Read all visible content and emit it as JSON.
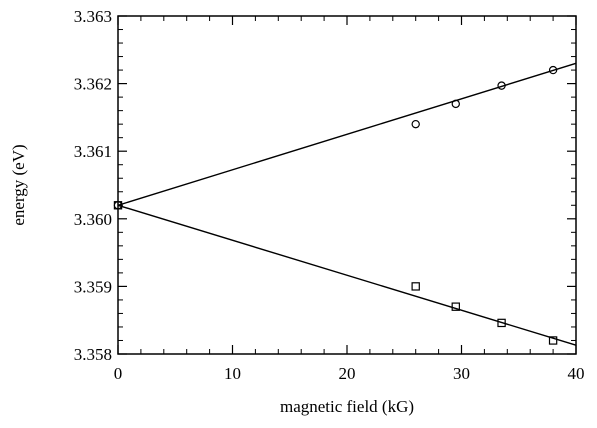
{
  "chart_data": {
    "type": "scatter",
    "title": "",
    "xlabel": "magnetic field (kG)",
    "ylabel": "energy (eV)",
    "xlim": [
      0,
      40
    ],
    "ylim": [
      3.358,
      3.363
    ],
    "xticks": [
      0,
      10,
      20,
      30,
      40
    ],
    "xtick_labels": [
      "0",
      "10",
      "20",
      "30",
      "40"
    ],
    "yticks": [
      3.358,
      3.359,
      3.36,
      3.361,
      3.362,
      3.363
    ],
    "ytick_labels": [
      "3.358",
      "3.359",
      "3.360",
      "3.361",
      "3.362",
      "3.363"
    ],
    "grid": false,
    "series": [
      {
        "marker": "circle",
        "x": [
          0,
          26,
          29.5,
          33.5,
          38
        ],
        "y": [
          3.3602,
          3.3614,
          3.3617,
          3.36197,
          3.3622
        ]
      },
      {
        "marker": "square",
        "x": [
          0,
          26,
          29.5,
          33.5,
          38
        ],
        "y": [
          3.3602,
          3.359,
          3.3587,
          3.35846,
          3.3582
        ]
      }
    ],
    "fit_lines": [
      {
        "x": [
          0,
          40
        ],
        "y": [
          3.3602,
          3.3623
        ]
      },
      {
        "x": [
          0,
          40
        ],
        "y": [
          3.3602,
          3.35813
        ]
      }
    ]
  }
}
